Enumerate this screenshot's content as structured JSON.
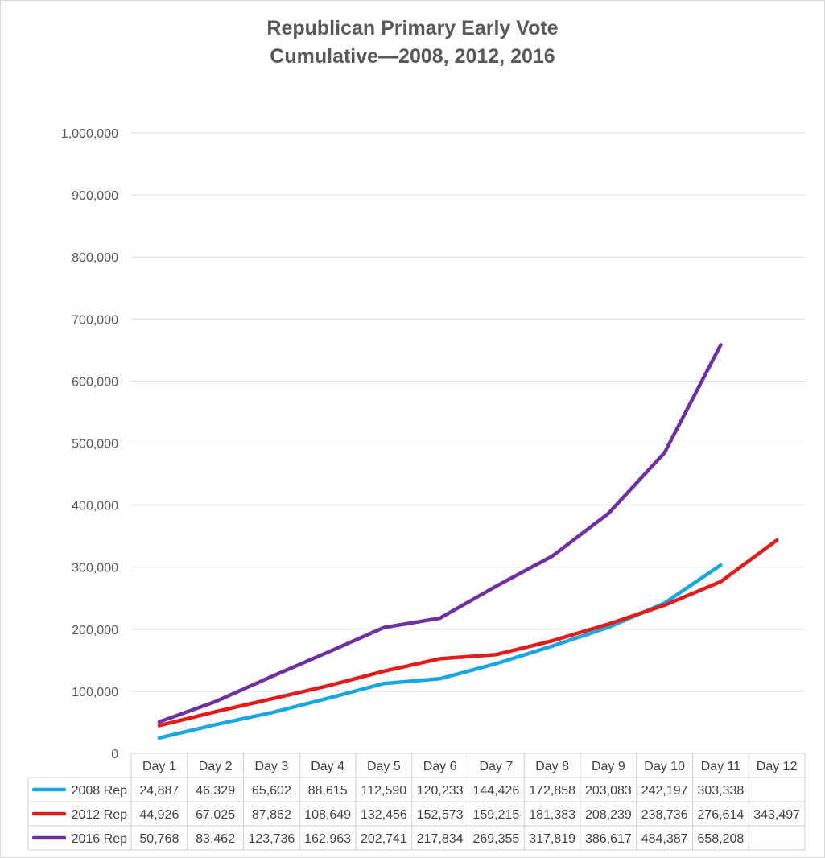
{
  "chart_data": {
    "type": "line",
    "title_lines": [
      "Republican Primary Early Vote",
      "Cumulative—2008, 2012, 2016"
    ],
    "categories": [
      "Day 1",
      "Day 2",
      "Day 3",
      "Day 4",
      "Day 5",
      "Day 6",
      "Day 7",
      "Day 8",
      "Day 9",
      "Day 10",
      "Day 11",
      "Day 12"
    ],
    "ylim": [
      0,
      1000000
    ],
    "yticks": [
      0,
      100000,
      200000,
      300000,
      400000,
      500000,
      600000,
      700000,
      800000,
      900000,
      1000000
    ],
    "ytick_labels": [
      "0",
      "100,000",
      "200,000",
      "300,000",
      "400,000",
      "500,000",
      "600,000",
      "700,000",
      "800,000",
      "900,000",
      "1,000,000"
    ],
    "grid": true,
    "legend": "data-table",
    "series": [
      {
        "name": "2008 Rep",
        "color": "#1aa7e0",
        "values": [
          24887,
          46329,
          65602,
          88615,
          112590,
          120233,
          144426,
          172858,
          203083,
          242197,
          303338,
          null
        ],
        "labels": [
          "24,887",
          "46,329",
          "65,602",
          "88,615",
          "112,590",
          "120,233",
          "144,426",
          "172,858",
          "203,083",
          "242,197",
          "303,338",
          ""
        ]
      },
      {
        "name": "2012 Rep",
        "color": "#e31b1b",
        "values": [
          44926,
          67025,
          87862,
          108649,
          132456,
          152573,
          159215,
          181383,
          208239,
          238736,
          276614,
          343497
        ],
        "labels": [
          "44,926",
          "67,025",
          "87,862",
          "108,649",
          "132,456",
          "152,573",
          "159,215",
          "181,383",
          "208,239",
          "238,736",
          "276,614",
          "343,497"
        ]
      },
      {
        "name": "2016 Rep",
        "color": "#7030a0",
        "values": [
          50768,
          83462,
          123736,
          162963,
          202741,
          217834,
          269355,
          317819,
          386617,
          484387,
          658208,
          null
        ],
        "labels": [
          "50,768",
          "83,462",
          "123,736",
          "162,963",
          "202,741",
          "217,834",
          "269,355",
          "317,819",
          "386,617",
          "484,387",
          "658,208",
          ""
        ]
      }
    ]
  }
}
